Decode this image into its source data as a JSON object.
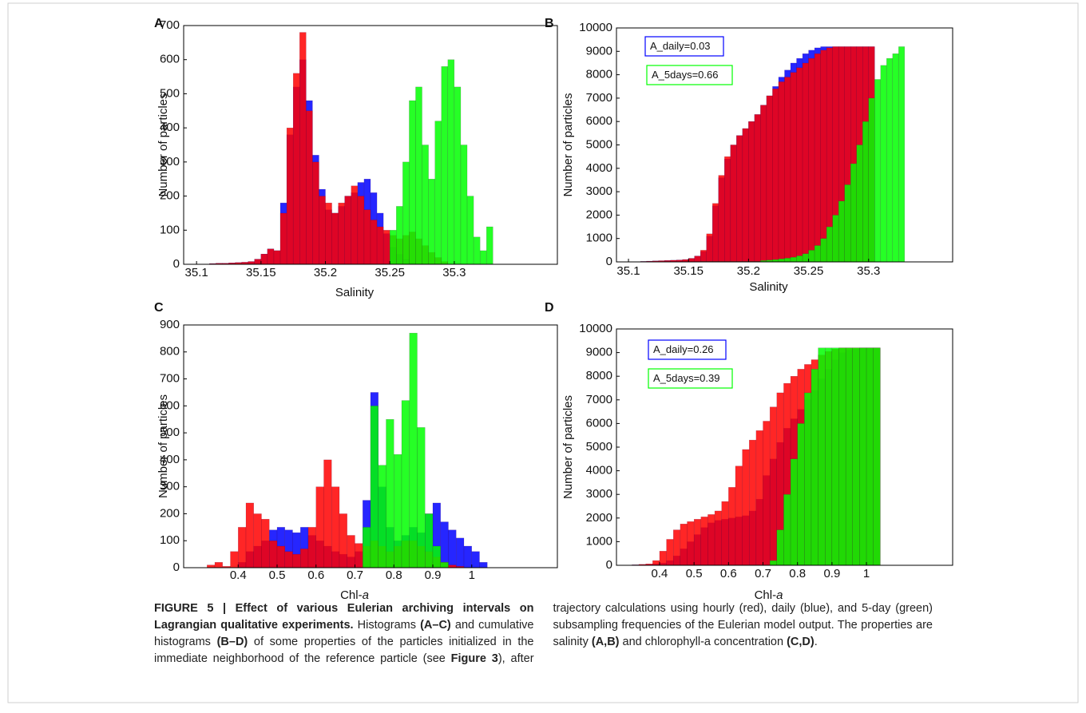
{
  "chart_data": [
    {
      "type": "histogram",
      "label": "A",
      "ylabel": "Number of particles",
      "xlabel": [
        {
          "text": "Salinity",
          "italic": false
        }
      ],
      "bins": [
        35.11,
        35.115,
        35.12,
        35.125,
        35.13,
        35.135,
        35.14,
        35.145,
        35.15,
        35.155,
        35.16,
        35.165,
        35.17,
        35.175,
        35.18,
        35.185,
        35.19,
        35.195,
        35.2,
        35.205,
        35.21,
        35.215,
        35.22,
        35.225,
        35.23,
        35.235,
        35.24,
        35.245,
        35.25,
        35.255,
        35.26,
        35.265,
        35.27,
        35.275,
        35.28,
        35.285,
        35.29,
        35.295,
        35.3,
        35.305,
        35.31,
        35.315,
        35.32,
        35.325,
        35.33
      ],
      "series": [
        {
          "color": "#0000ff",
          "values": [
            2,
            3,
            3,
            4,
            5,
            6,
            8,
            15,
            30,
            45,
            40,
            180,
            380,
            520,
            600,
            480,
            320,
            220,
            160,
            150,
            170,
            200,
            210,
            240,
            250,
            210,
            150,
            90,
            50,
            30,
            15,
            5,
            0,
            0,
            0,
            0,
            0,
            0,
            0,
            0,
            0,
            0,
            0,
            0
          ]
        },
        {
          "color": "#ff0000",
          "values": [
            2,
            3,
            3,
            4,
            5,
            6,
            8,
            15,
            30,
            45,
            40,
            150,
            400,
            560,
            680,
            450,
            300,
            200,
            180,
            150,
            180,
            200,
            230,
            200,
            160,
            130,
            110,
            100,
            85,
            75,
            85,
            95,
            75,
            55,
            35,
            20,
            8,
            0,
            0,
            0,
            0,
            0,
            0,
            0
          ]
        },
        {
          "color": "#00ff00",
          "values": [
            0,
            0,
            0,
            0,
            0,
            0,
            0,
            0,
            0,
            0,
            0,
            0,
            0,
            0,
            0,
            0,
            0,
            0,
            0,
            0,
            0,
            0,
            0,
            0,
            0,
            0,
            0,
            0,
            100,
            170,
            300,
            480,
            520,
            350,
            250,
            420,
            580,
            600,
            520,
            350,
            200,
            80,
            40,
            110
          ]
        }
      ],
      "xlim": [
        35.09,
        35.38
      ],
      "ylim": [
        0,
        700
      ],
      "xticks": [
        35.1,
        35.15,
        35.2,
        35.25,
        35.3
      ],
      "yticks": [
        0,
        100,
        200,
        300,
        400,
        500,
        600,
        700
      ]
    },
    {
      "type": "histogram",
      "label": "B",
      "ylabel": "Number of particles",
      "xlabel": [
        {
          "text": "Salinity",
          "italic": false
        }
      ],
      "bins": [
        35.11,
        35.115,
        35.12,
        35.125,
        35.13,
        35.135,
        35.14,
        35.145,
        35.15,
        35.155,
        35.16,
        35.165,
        35.17,
        35.175,
        35.18,
        35.185,
        35.19,
        35.195,
        35.2,
        35.205,
        35.21,
        35.215,
        35.22,
        35.225,
        35.23,
        35.235,
        35.24,
        35.245,
        35.25,
        35.255,
        35.26,
        35.265,
        35.27,
        35.275,
        35.28,
        35.285,
        35.29,
        35.295,
        35.3,
        35.305,
        35.31,
        35.315,
        35.32,
        35.325,
        35.33
      ],
      "series": [
        {
          "color": "#0000ff",
          "values": [
            20,
            30,
            40,
            50,
            60,
            70,
            80,
            100,
            150,
            250,
            450,
            1100,
            2400,
            3600,
            4400,
            5000,
            5400,
            5700,
            6000,
            6300,
            6700,
            7100,
            7500,
            7900,
            8200,
            8500,
            8700,
            8900,
            9050,
            9150,
            9200,
            9200,
            9200,
            9200,
            9200,
            9200,
            9200,
            9200,
            9200,
            0,
            0,
            0,
            0,
            0
          ]
        },
        {
          "color": "#ff0000",
          "values": [
            20,
            30,
            40,
            50,
            60,
            70,
            80,
            100,
            150,
            250,
            500,
            1200,
            2500,
            3700,
            4500,
            5000,
            5400,
            5700,
            6000,
            6300,
            6700,
            7100,
            7400,
            7700,
            7900,
            8100,
            8300,
            8500,
            8700,
            8900,
            9050,
            9150,
            9200,
            9200,
            9200,
            9200,
            9200,
            9200,
            9200,
            0,
            0,
            0,
            0,
            0
          ]
        },
        {
          "color": "#00ff00",
          "values": [
            5,
            5,
            5,
            5,
            5,
            5,
            5,
            5,
            5,
            5,
            20,
            20,
            20,
            20,
            20,
            20,
            20,
            20,
            20,
            20,
            60,
            80,
            100,
            130,
            160,
            200,
            260,
            350,
            500,
            700,
            1000,
            1500,
            2000,
            2600,
            3300,
            4200,
            5000,
            6000,
            7000,
            7800,
            8400,
            8700,
            8900,
            9200
          ]
        }
      ],
      "xlim": [
        35.09,
        35.37
      ],
      "ylim": [
        0,
        10000
      ],
      "xticks": [
        35.1,
        35.15,
        35.2,
        35.25,
        35.3
      ],
      "yticks": [
        0,
        1000,
        2000,
        3000,
        4000,
        5000,
        6000,
        7000,
        8000,
        9000,
        10000
      ],
      "annotations": [
        {
          "text": "A_daily=0.03",
          "color": "#0000ff"
        },
        {
          "text": "A_5days=0.66",
          "color": "#00ff00"
        }
      ]
    },
    {
      "type": "histogram",
      "label": "C",
      "ylabel": "Number of particles",
      "xlabel": [
        {
          "text": "Chl-",
          "italic": false
        },
        {
          "text": "a",
          "italic": true
        }
      ],
      "bins": [
        0.32,
        0.34,
        0.36,
        0.38,
        0.4,
        0.42,
        0.44,
        0.46,
        0.48,
        0.5,
        0.52,
        0.54,
        0.56,
        0.58,
        0.6,
        0.62,
        0.64,
        0.66,
        0.68,
        0.7,
        0.72,
        0.74,
        0.76,
        0.78,
        0.8,
        0.82,
        0.84,
        0.86,
        0.88,
        0.9,
        0.92,
        0.94,
        0.96,
        0.98,
        1.0,
        1.02,
        1.04
      ],
      "series": [
        {
          "color": "#0000ff",
          "values": [
            0,
            0,
            0,
            0,
            20,
            60,
            80,
            100,
            140,
            150,
            140,
            130,
            150,
            120,
            100,
            80,
            60,
            50,
            40,
            60,
            250,
            650,
            300,
            150,
            100,
            120,
            150,
            130,
            200,
            240,
            170,
            140,
            110,
            80,
            60,
            20
          ]
        },
        {
          "color": "#ff0000",
          "values": [
            10,
            20,
            5,
            60,
            150,
            240,
            200,
            180,
            100,
            80,
            60,
            50,
            70,
            150,
            300,
            400,
            300,
            200,
            120,
            90,
            80,
            100,
            80,
            60,
            80,
            100,
            100,
            80,
            60,
            40,
            20,
            10,
            5,
            0,
            0,
            0
          ]
        },
        {
          "color": "#00ff00",
          "values": [
            0,
            0,
            0,
            0,
            0,
            0,
            0,
            0,
            0,
            0,
            0,
            0,
            0,
            0,
            0,
            0,
            0,
            0,
            0,
            0,
            150,
            600,
            380,
            550,
            420,
            620,
            870,
            520,
            200,
            80,
            20,
            0,
            0,
            0,
            0,
            0
          ]
        }
      ],
      "xlim": [
        0.26,
        1.22
      ],
      "ylim": [
        0,
        900
      ],
      "xticks": [
        0.4,
        0.5,
        0.6,
        0.7,
        0.8,
        0.9,
        1
      ],
      "yticks": [
        0,
        100,
        200,
        300,
        400,
        500,
        600,
        700,
        800,
        900
      ]
    },
    {
      "type": "histogram",
      "label": "D",
      "ylabel": "Number of particles",
      "xlabel": [
        {
          "text": "Chl-",
          "italic": false
        },
        {
          "text": "a",
          "italic": true
        }
      ],
      "bins": [
        0.32,
        0.34,
        0.36,
        0.38,
        0.4,
        0.42,
        0.44,
        0.46,
        0.48,
        0.5,
        0.52,
        0.54,
        0.56,
        0.58,
        0.6,
        0.62,
        0.64,
        0.66,
        0.68,
        0.7,
        0.72,
        0.74,
        0.76,
        0.78,
        0.8,
        0.82,
        0.84,
        0.86,
        0.88,
        0.9,
        0.92,
        0.94,
        0.96,
        0.98,
        1.0,
        1.02,
        1.04
      ],
      "series": [
        {
          "color": "#0000ff",
          "values": [
            20,
            30,
            40,
            60,
            100,
            200,
            400,
            700,
            1000,
            1300,
            1600,
            1800,
            1900,
            1950,
            2000,
            2050,
            2100,
            2300,
            2800,
            3800,
            4500,
            5200,
            5800,
            6200,
            6600,
            7000,
            7400,
            7900,
            8300,
            8700,
            9000,
            9100,
            9150,
            9200,
            9200,
            9200
          ]
        },
        {
          "color": "#ff0000",
          "values": [
            20,
            40,
            60,
            200,
            600,
            1100,
            1500,
            1750,
            1850,
            1950,
            2050,
            2150,
            2300,
            2700,
            3300,
            4200,
            4900,
            5300,
            5700,
            6100,
            6700,
            7300,
            7700,
            8000,
            8300,
            8500,
            8700,
            8900,
            9050,
            9150,
            9200,
            9200,
            9200,
            9200,
            9200,
            9200
          ]
        },
        {
          "color": "#00ff00",
          "values": [
            0,
            0,
            0,
            0,
            0,
            0,
            0,
            0,
            0,
            0,
            0,
            0,
            0,
            0,
            0,
            0,
            0,
            0,
            0,
            0,
            200,
            1500,
            3000,
            4500,
            6000,
            7300,
            8300,
            9200,
            9200,
            9200,
            9200,
            9200,
            9200,
            9200,
            9200,
            9200
          ]
        }
      ],
      "xlim": [
        0.275,
        1.25
      ],
      "ylim": [
        0,
        10000
      ],
      "xticks": [
        0.4,
        0.5,
        0.6,
        0.7,
        0.8,
        0.9,
        1
      ],
      "yticks": [
        0,
        1000,
        2000,
        3000,
        4000,
        5000,
        6000,
        7000,
        8000,
        9000,
        10000
      ],
      "annotations": [
        {
          "text": "A_daily=0.26",
          "color": "#0000ff"
        },
        {
          "text": "A_5days=0.39",
          "color": "#00ff00"
        }
      ]
    }
  ],
  "caption": {
    "segments": [
      {
        "text": "FIGURE 5 | Effect of various Eulerian archiving intervals on Lagrangian qualitative experiments.",
        "bold": true
      },
      {
        "text": " Histograms ",
        "bold": false
      },
      {
        "text": "(A–C)",
        "bold": true
      },
      {
        "text": " and cumulative histograms ",
        "bold": false
      },
      {
        "text": "(B–D)",
        "bold": true
      },
      {
        "text": " of some properties of the particles initialized in the immediate neighborhood of the reference particle (see ",
        "bold": false
      },
      {
        "text": "Figure 3",
        "bold": true
      },
      {
        "text": "), after trajectory calculations using hourly (red), daily (blue), and 5-day (green) subsampling frequencies of the Eulerian model output. The properties are salinity ",
        "bold": false
      },
      {
        "text": "(A,B)",
        "bold": true
      },
      {
        "text": " and chlorophyll-a concentration ",
        "bold": false
      },
      {
        "text": "(C,D)",
        "bold": true
      },
      {
        "text": ".",
        "bold": false
      }
    ]
  }
}
